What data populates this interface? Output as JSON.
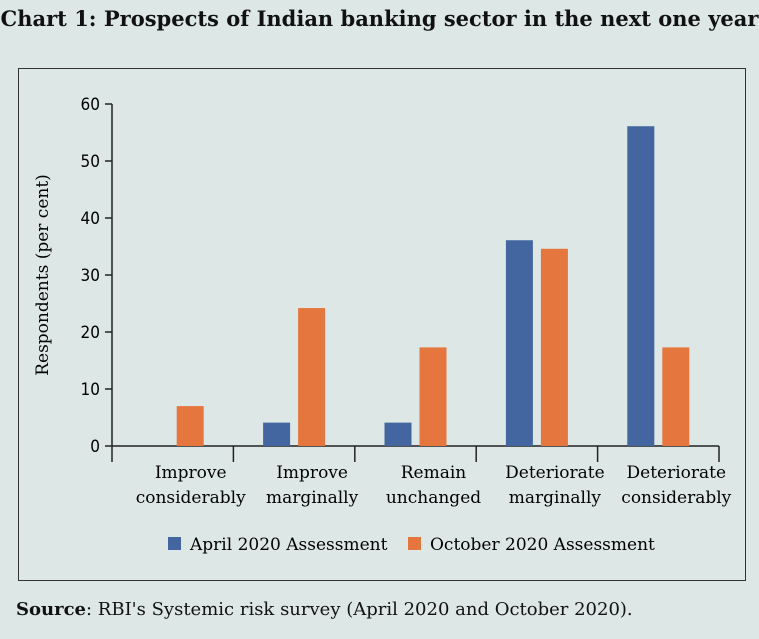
{
  "title": "Chart 1: Prospects of Indian banking sector in the next one year",
  "source": {
    "label": "Source",
    "text": ": RBI's Systemic risk survey (April 2020 and October 2020)."
  },
  "chart_data": {
    "type": "bar",
    "title": "Chart 1: Prospects of Indian banking sector in the next one year",
    "ylabel": "Respondents (per cent)",
    "xlabel": "",
    "ylim": [
      0,
      60
    ],
    "yticks": [
      "0",
      "10",
      "20",
      "30",
      "40",
      "50",
      "60"
    ],
    "categories": [
      [
        "Improve",
        "considerably"
      ],
      [
        "Improve",
        "marginally"
      ],
      [
        "Remain",
        "unchanged"
      ],
      [
        "Deteriorate",
        "marginally"
      ],
      [
        "Deteriorate",
        "considerably"
      ]
    ],
    "series": [
      {
        "name": "April 2020 Assessment",
        "color": "#4466a0",
        "values": [
          0,
          4.1,
          4.1,
          36.1,
          56.1
        ]
      },
      {
        "name": "October 2020 Assessment",
        "color": "#e5763d",
        "values": [
          7.0,
          24.2,
          17.3,
          34.6,
          17.3
        ]
      }
    ],
    "legend": "bottom",
    "grid": false
  }
}
